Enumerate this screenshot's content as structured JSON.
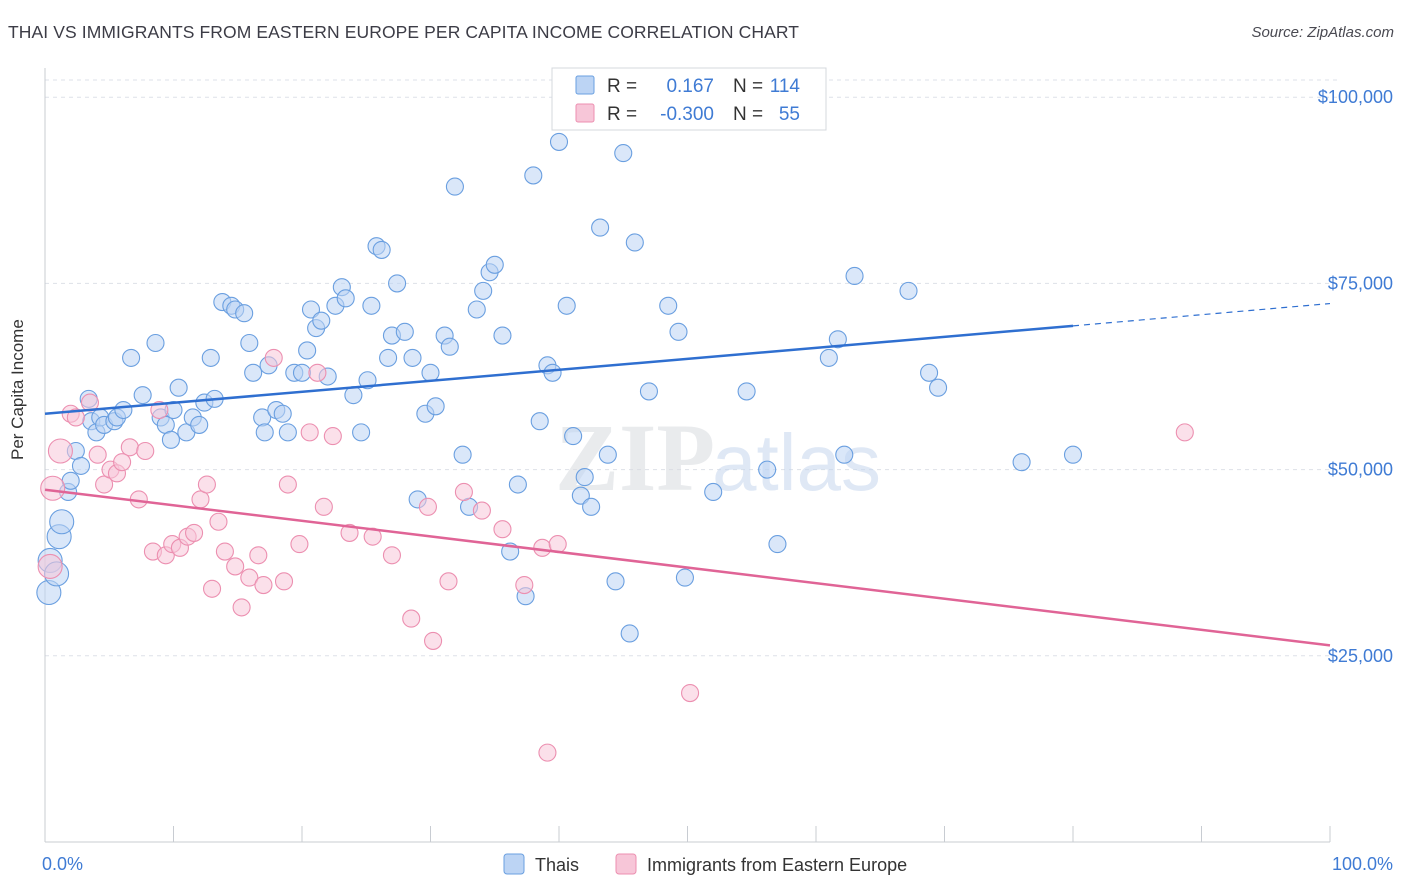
{
  "header": {
    "title": "THAI VS IMMIGRANTS FROM EASTERN EUROPE PER CAPITA INCOME CORRELATION CHART",
    "source": "Source: ZipAtlas.com"
  },
  "watermark": {
    "zip": "ZIP",
    "atlas": "atlas"
  },
  "colors": {
    "blue": "#6a9fe0",
    "blue_fill": "#bcd4f4",
    "blue_line": "#2f6fd0",
    "pink": "#ec8fb0",
    "pink_fill": "#f7c6d8",
    "pink_line": "#e06496",
    "axis_text": "#3f7bd4",
    "grid": "#dde1e8"
  },
  "chart_data": {
    "type": "scatter",
    "title": "THAI VS IMMIGRANTS FROM EASTERN EUROPE PER CAPITA INCOME CORRELATION CHART",
    "xlabel": "",
    "ylabel": "Per Capita Income",
    "xlim": [
      0,
      100
    ],
    "ylim": [
      0,
      105000
    ],
    "x_tick_labels": [
      "0.0%",
      "100.0%"
    ],
    "y_ticks": [
      25000,
      50000,
      75000,
      100000
    ],
    "y_tick_labels": [
      "$25,000",
      "$50,000",
      "$75,000",
      "$100,000"
    ],
    "grid": true,
    "legend_position": "bottom",
    "stats": [
      {
        "r_label": "R =",
        "r_value": "0.167",
        "n_label": "N =",
        "n_value": "114"
      },
      {
        "r_label": "R =",
        "r_value": "-0.300",
        "n_label": "N =",
        "n_value": "55"
      }
    ],
    "series": [
      {
        "name": "Thais",
        "color": "#6a9fe0",
        "trend": {
          "x": [
            0,
            80
          ],
          "y": [
            57500,
            69300
          ],
          "dashed_to": [
            100,
            72300
          ]
        },
        "points": [
          [
            0.3,
            33500
          ],
          [
            0.4,
            37800
          ],
          [
            1.1,
            41000
          ],
          [
            1.3,
            43000
          ],
          [
            1.8,
            47000
          ],
          [
            2.0,
            48500
          ],
          [
            2.4,
            52500
          ],
          [
            2.8,
            50500
          ],
          [
            3.4,
            59500
          ],
          [
            3.6,
            56500
          ],
          [
            4.0,
            55000
          ],
          [
            4.3,
            57000
          ],
          [
            4.6,
            56000
          ],
          [
            5.4,
            56500
          ],
          [
            5.6,
            57000
          ],
          [
            6.1,
            58000
          ],
          [
            6.7,
            65000
          ],
          [
            7.6,
            60000
          ],
          [
            8.6,
            67000
          ],
          [
            9.0,
            57000
          ],
          [
            9.4,
            56000
          ],
          [
            9.8,
            54000
          ],
          [
            10.0,
            58000
          ],
          [
            10.4,
            61000
          ],
          [
            11.0,
            55000
          ],
          [
            11.5,
            57000
          ],
          [
            12.0,
            56000
          ],
          [
            12.4,
            59000
          ],
          [
            12.9,
            65000
          ],
          [
            13.2,
            59500
          ],
          [
            13.8,
            72500
          ],
          [
            14.5,
            72000
          ],
          [
            14.8,
            71500
          ],
          [
            15.5,
            71000
          ],
          [
            15.9,
            67000
          ],
          [
            16.2,
            63000
          ],
          [
            16.9,
            57000
          ],
          [
            17.1,
            55000
          ],
          [
            17.4,
            64000
          ],
          [
            18.0,
            58000
          ],
          [
            18.5,
            57500
          ],
          [
            18.9,
            55000
          ],
          [
            19.4,
            63000
          ],
          [
            20.0,
            63000
          ],
          [
            20.4,
            66000
          ],
          [
            20.7,
            71500
          ],
          [
            21.1,
            69000
          ],
          [
            21.5,
            70000
          ],
          [
            22.0,
            62500
          ],
          [
            22.6,
            72000
          ],
          [
            23.1,
            74500
          ],
          [
            23.4,
            73000
          ],
          [
            24.0,
            60000
          ],
          [
            24.6,
            55000
          ],
          [
            25.1,
            62000
          ],
          [
            25.4,
            72000
          ],
          [
            25.8,
            80000
          ],
          [
            26.2,
            79500
          ],
          [
            26.7,
            65000
          ],
          [
            27.0,
            68000
          ],
          [
            27.4,
            75000
          ],
          [
            28.0,
            68500
          ],
          [
            28.6,
            65000
          ],
          [
            29.0,
            46000
          ],
          [
            29.6,
            57500
          ],
          [
            30.0,
            63000
          ],
          [
            30.4,
            58500
          ],
          [
            31.1,
            68000
          ],
          [
            31.5,
            66500
          ],
          [
            31.9,
            88000
          ],
          [
            32.5,
            52000
          ],
          [
            33.0,
            45000
          ],
          [
            33.6,
            71500
          ],
          [
            34.1,
            74000
          ],
          [
            34.6,
            76500
          ],
          [
            35.0,
            77500
          ],
          [
            35.6,
            68000
          ],
          [
            36.2,
            39000
          ],
          [
            36.8,
            48000
          ],
          [
            37.4,
            33000
          ],
          [
            38.0,
            89500
          ],
          [
            38.5,
            56500
          ],
          [
            39.1,
            64000
          ],
          [
            39.5,
            63000
          ],
          [
            40.0,
            94000
          ],
          [
            40.6,
            72000
          ],
          [
            41.1,
            54500
          ],
          [
            41.7,
            46500
          ],
          [
            42.0,
            49000
          ],
          [
            42.5,
            45000
          ],
          [
            43.2,
            82500
          ],
          [
            43.8,
            52000
          ],
          [
            44.4,
            35000
          ],
          [
            45.0,
            92500
          ],
          [
            45.5,
            28000
          ],
          [
            45.9,
            80500
          ],
          [
            47.0,
            60500
          ],
          [
            48.5,
            72000
          ],
          [
            49.3,
            68500
          ],
          [
            49.8,
            35500
          ],
          [
            52.0,
            47000
          ],
          [
            54.6,
            60500
          ],
          [
            56.2,
            50000
          ],
          [
            57.0,
            40000
          ],
          [
            61.0,
            65000
          ],
          [
            61.7,
            67500
          ],
          [
            62.2,
            52000
          ],
          [
            63.0,
            76000
          ],
          [
            67.2,
            74000
          ],
          [
            68.8,
            63000
          ],
          [
            69.5,
            61000
          ],
          [
            76.0,
            51000
          ],
          [
            80.0,
            52000
          ],
          [
            0.9,
            36000
          ]
        ]
      },
      {
        "name": "Immigrants from Eastern Europe",
        "color": "#ec8fb0",
        "trend": {
          "x": [
            0,
            100
          ],
          "y": [
            47300,
            26400
          ]
        },
        "points": [
          [
            0.4,
            37000
          ],
          [
            0.6,
            47500
          ],
          [
            1.2,
            52500
          ],
          [
            2.0,
            57500
          ],
          [
            2.4,
            57000
          ],
          [
            3.5,
            59000
          ],
          [
            4.1,
            52000
          ],
          [
            4.6,
            48000
          ],
          [
            5.1,
            50000
          ],
          [
            5.6,
            49500
          ],
          [
            6.0,
            51000
          ],
          [
            6.6,
            53000
          ],
          [
            7.3,
            46000
          ],
          [
            7.8,
            52500
          ],
          [
            8.4,
            39000
          ],
          [
            8.9,
            58000
          ],
          [
            9.4,
            38500
          ],
          [
            9.9,
            40000
          ],
          [
            10.5,
            39500
          ],
          [
            11.1,
            41000
          ],
          [
            11.6,
            41500
          ],
          [
            12.1,
            46000
          ],
          [
            12.6,
            48000
          ],
          [
            13.0,
            34000
          ],
          [
            13.5,
            43000
          ],
          [
            14.0,
            39000
          ],
          [
            14.8,
            37000
          ],
          [
            15.3,
            31500
          ],
          [
            15.9,
            35500
          ],
          [
            16.6,
            38500
          ],
          [
            17.0,
            34500
          ],
          [
            17.8,
            65000
          ],
          [
            18.6,
            35000
          ],
          [
            18.9,
            48000
          ],
          [
            19.8,
            40000
          ],
          [
            20.6,
            55000
          ],
          [
            21.2,
            63000
          ],
          [
            21.7,
            45000
          ],
          [
            22.4,
            54500
          ],
          [
            23.7,
            41500
          ],
          [
            25.5,
            41000
          ],
          [
            27.0,
            38500
          ],
          [
            28.5,
            30000
          ],
          [
            29.8,
            45000
          ],
          [
            30.2,
            27000
          ],
          [
            31.4,
            35000
          ],
          [
            32.6,
            47000
          ],
          [
            34.0,
            44500
          ],
          [
            35.6,
            42000
          ],
          [
            37.3,
            34500
          ],
          [
            38.7,
            39500
          ],
          [
            39.9,
            40000
          ],
          [
            39.1,
            12000
          ],
          [
            50.2,
            20000
          ],
          [
            88.7,
            55000
          ]
        ]
      }
    ]
  }
}
